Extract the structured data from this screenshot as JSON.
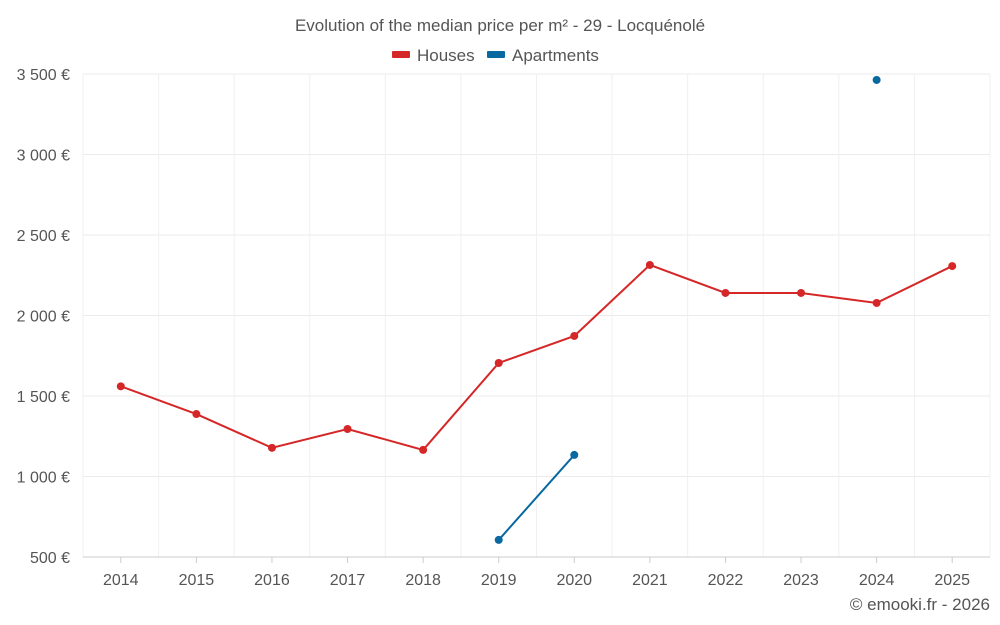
{
  "chart_data": {
    "type": "line",
    "title": "Evolution of the median price per m² - 29 - Locquénolé",
    "x": [
      "2014",
      "2015",
      "2016",
      "2017",
      "2018",
      "2019",
      "2020",
      "2021",
      "2022",
      "2023",
      "2024",
      "2025"
    ],
    "series": [
      {
        "name": "Houses",
        "color": "#d62728",
        "values": [
          1560,
          1388,
          1178,
          1295,
          1165,
          1705,
          1873,
          2314,
          2140,
          2140,
          2078,
          2307
        ]
      },
      {
        "name": "Apartments",
        "color": "#0868a0",
        "values": [
          null,
          null,
          null,
          null,
          null,
          606,
          1134,
          null,
          null,
          null,
          3463,
          null
        ]
      }
    ],
    "yticks": [
      500,
      1000,
      1500,
      2000,
      2500,
      3000,
      3500
    ],
    "ytick_labels": [
      "500 €",
      "1 000 €",
      "1 500 €",
      "2 000 €",
      "2 500 €",
      "3 000 €",
      "3 500 €"
    ],
    "ylim": [
      500,
      3500
    ],
    "grid": true,
    "legend": "top-center",
    "xlabel": "",
    "ylabel": ""
  },
  "credit": "© emooki.fr - 2026"
}
